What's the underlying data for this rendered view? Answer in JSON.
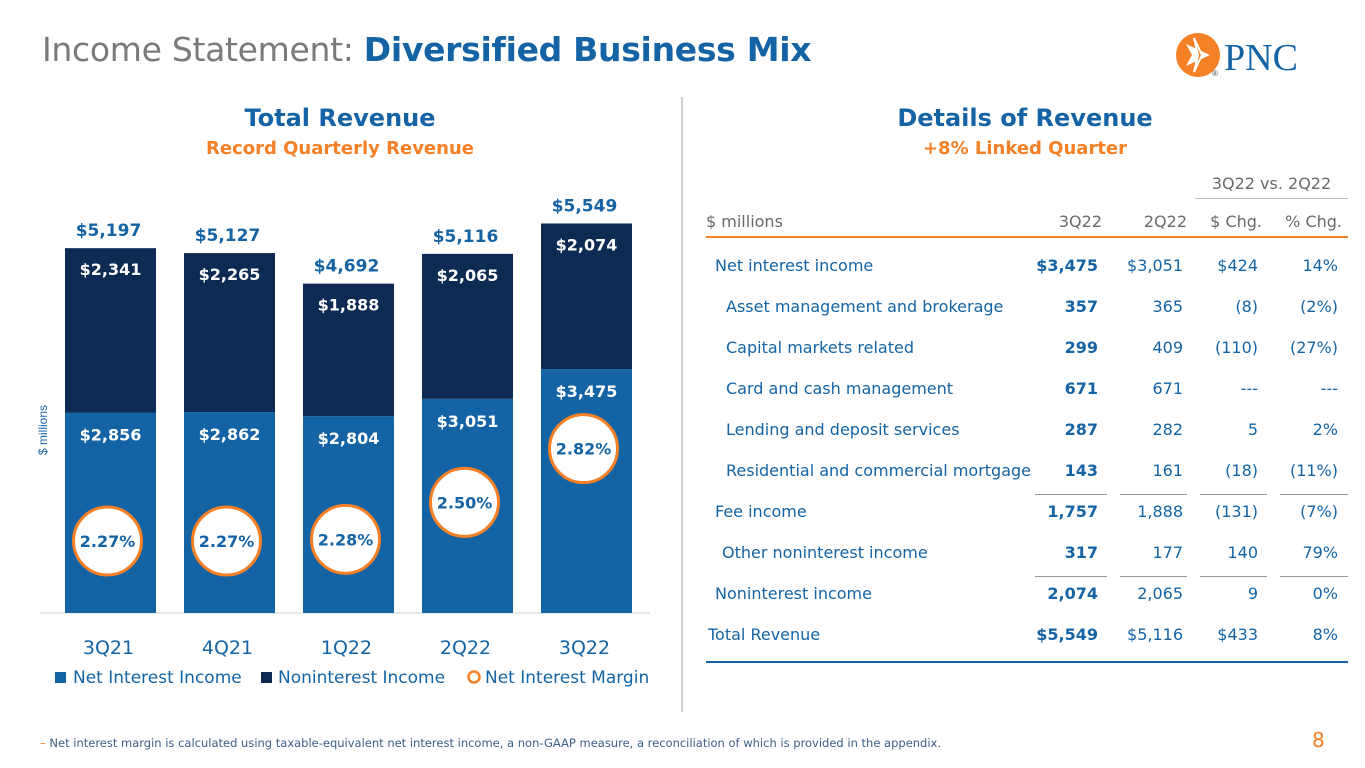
{
  "header": {
    "title_prefix": "Income Statement: ",
    "title_main": "Diversified Business Mix",
    "logo_text": "PNC",
    "logo_mark": "®"
  },
  "colors": {
    "nii": "#1464a5",
    "nonint": "#0d2a52",
    "accent": "#f58025",
    "text_blue": "#1464a5"
  },
  "left_panel": {
    "title": "Total Revenue",
    "subtitle": "Record Quarterly Revenue"
  },
  "right_panel": {
    "title": "Details of Revenue",
    "subtitle": "+8% Linked Quarter"
  },
  "chart_data": {
    "type": "bar",
    "stacked": true,
    "categories": [
      "3Q21",
      "4Q21",
      "1Q22",
      "2Q22",
      "3Q22"
    ],
    "series": [
      {
        "name": "Net Interest Income",
        "values": [
          2856,
          2862,
          2804,
          3051,
          3475
        ],
        "labels": [
          "$2,856",
          "$2,862",
          "$2,804",
          "$3,051",
          "$3,475"
        ]
      },
      {
        "name": "Noninterest Income",
        "values": [
          2341,
          2265,
          1888,
          2065,
          2074
        ],
        "labels": [
          "$2,341",
          "$2,265",
          "$1,888",
          "$2,065",
          "$2,074"
        ]
      }
    ],
    "totals": [
      5197,
      5127,
      4692,
      5116,
      5549
    ],
    "total_labels": [
      "$5,197",
      "$5,127",
      "$4,692",
      "$5,116",
      "$5,549"
    ],
    "net_interest_margin": [
      2.27,
      2.27,
      2.28,
      2.5,
      2.82
    ],
    "nim_labels": [
      "2.27%",
      "2.27%",
      "2.28%",
      "2.50%",
      "2.82%"
    ],
    "ylabel": "$ millions",
    "ylim": [
      0,
      6000
    ],
    "legend": [
      "Net Interest Income",
      "Noninterest Income",
      "Net Interest Margin"
    ],
    "legend_position": "bottom"
  },
  "table": {
    "compare_header": "3Q22 vs. 2Q22",
    "unit_label": "$ millions",
    "columns": [
      "3Q22",
      "2Q22",
      "$ Chg.",
      "% Chg."
    ],
    "rows": [
      {
        "label": "Net interest income",
        "v1": "$3,475",
        "v2": "$3,051",
        "v3": "$424",
        "v4": "14%"
      },
      {
        "label": "Asset management and brokerage",
        "v1": "357",
        "v2": "365",
        "v3": "(8)",
        "v4": "(2%)"
      },
      {
        "label": "Capital markets related",
        "v1": "299",
        "v2": "409",
        "v3": "(110)",
        "v4": "(27%)"
      },
      {
        "label": "Card and cash management",
        "v1": "671",
        "v2": "671",
        "v3": "---",
        "v4": "---"
      },
      {
        "label": "Lending and deposit services",
        "v1": "287",
        "v2": "282",
        "v3": "5",
        "v4": "2%"
      },
      {
        "label": "Residential and commercial mortgage",
        "v1": "143",
        "v2": "161",
        "v3": "(18)",
        "v4": "(11%)"
      },
      {
        "label": "Fee income",
        "v1": "1,757",
        "v2": "1,888",
        "v3": "(131)",
        "v4": "(7%)"
      },
      {
        "label": "Other noninterest income",
        "v1": "317",
        "v2": "177",
        "v3": "140",
        "v4": "79%"
      },
      {
        "label": "Noninterest income",
        "v1": "2,074",
        "v2": "2,065",
        "v3": "9",
        "v4": "0%"
      },
      {
        "label": "Total Revenue",
        "v1": "$5,549",
        "v2": "$5,116",
        "v3": "$433",
        "v4": "8%"
      }
    ]
  },
  "footnote": {
    "dash": "–",
    "text": "Net interest margin is calculated using taxable-equivalent net interest income, a non-GAAP measure, a reconciliation of which is provided in the appendix."
  },
  "page_number": "8"
}
